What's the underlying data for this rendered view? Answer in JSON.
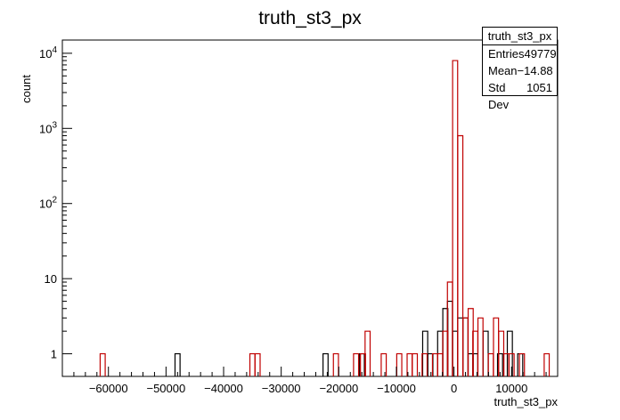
{
  "chart_data": {
    "type": "histogram",
    "title": "truth_st3_px",
    "xlabel": "truth_st3_px",
    "ylabel": "count",
    "xlim": [
      -68000,
      18000
    ],
    "ylim": [
      0.5,
      15000
    ],
    "y_scale": "log",
    "bin_width": 875,
    "x_ticks": [
      -60000,
      -50000,
      -40000,
      -30000,
      -20000,
      -10000,
      0,
      10000
    ],
    "x_tick_labels": [
      "−60000",
      "−50000",
      "−40000",
      "−30000",
      "−20000",
      "−10000",
      "0",
      "10000"
    ],
    "y_ticks": [
      1,
      10,
      100,
      1000,
      10000
    ],
    "y_tick_labels": [
      "1",
      "10",
      "10^2",
      "10^3",
      "10^4"
    ],
    "grid": false,
    "series": [
      {
        "color": "#000000",
        "bins": [
          {
            "x": -48000,
            "y": 1
          },
          {
            "x": -22300,
            "y": 1
          },
          {
            "x": -16000,
            "y": 1
          },
          {
            "x": -5000,
            "y": 2
          },
          {
            "x": -4100,
            "y": 1
          },
          {
            "x": -2400,
            "y": 2
          },
          {
            "x": -1500,
            "y": 4
          },
          {
            "x": -700,
            "y": 5
          },
          {
            "x": 200,
            "y": 2
          },
          {
            "x": 1100,
            "y": 3
          },
          {
            "x": 2000,
            "y": 3
          },
          {
            "x": 2900,
            "y": 1
          },
          {
            "x": 3700,
            "y": 1
          },
          {
            "x": 5500,
            "y": 2
          },
          {
            "x": 8000,
            "y": 1
          },
          {
            "x": 9700,
            "y": 2
          },
          {
            "x": 11500,
            "y": 1
          }
        ]
      },
      {
        "color": "#c00000",
        "bins": [
          {
            "x": -61000,
            "y": 1
          },
          {
            "x": -35000,
            "y": 1
          },
          {
            "x": -34100,
            "y": 1
          },
          {
            "x": -20500,
            "y": 1
          },
          {
            "x": -17000,
            "y": 1
          },
          {
            "x": -15800,
            "y": 1
          },
          {
            "x": -15000,
            "y": 2
          },
          {
            "x": -12200,
            "y": 1
          },
          {
            "x": -9500,
            "y": 1
          },
          {
            "x": -7700,
            "y": 1
          },
          {
            "x": -6800,
            "y": 1
          },
          {
            "x": -5100,
            "y": 1
          },
          {
            "x": -3300,
            "y": 1
          },
          {
            "x": -2400,
            "y": 1
          },
          {
            "x": -1500,
            "y": 2
          },
          {
            "x": -700,
            "y": 9
          },
          {
            "x": 200,
            "y": 8000
          },
          {
            "x": 1100,
            "y": 800
          },
          {
            "x": 2000,
            "y": 3
          },
          {
            "x": 2900,
            "y": 4
          },
          {
            "x": 3700,
            "y": 2
          },
          {
            "x": 4600,
            "y": 3
          },
          {
            "x": 6400,
            "y": 1
          },
          {
            "x": 7300,
            "y": 3
          },
          {
            "x": 8200,
            "y": 2
          },
          {
            "x": 9100,
            "y": 1
          },
          {
            "x": 10000,
            "y": 1
          },
          {
            "x": 11800,
            "y": 1
          },
          {
            "x": 16100,
            "y": 1
          }
        ]
      }
    ]
  },
  "stats": {
    "title": "truth_st3_px",
    "rows": [
      {
        "label": "Entries",
        "value": "49779"
      },
      {
        "label": "Mean",
        "value": "−14.88"
      },
      {
        "label": "Std Dev",
        "value": "1051"
      }
    ]
  }
}
